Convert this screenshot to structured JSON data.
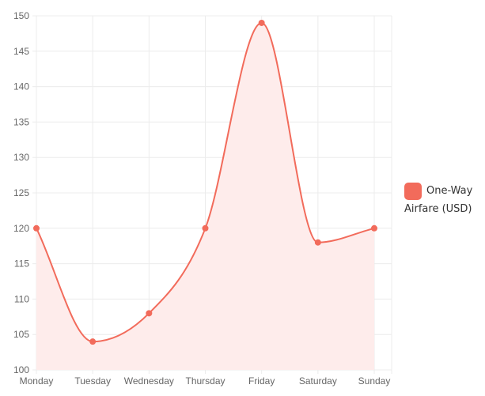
{
  "chart_data": {
    "type": "area",
    "categories": [
      "Monday",
      "Tuesday",
      "Wednesday",
      "Thursday",
      "Friday",
      "Saturday",
      "Sunday"
    ],
    "series": [
      {
        "name": "One-Way Airfare (USD)",
        "values": [
          120,
          104,
          108,
          120,
          149,
          118,
          120
        ]
      }
    ],
    "title": "",
    "xlabel": "",
    "ylabel": "",
    "ylim": [
      100,
      150
    ],
    "yticks": [
      100,
      105,
      110,
      115,
      120,
      125,
      130,
      135,
      140,
      145,
      150
    ],
    "grid": true,
    "legend_position": "right",
    "colors": {
      "line": "#f26b5b",
      "fill": "#feeceb",
      "grid": "#ececec",
      "tick_text": "#666666"
    }
  }
}
